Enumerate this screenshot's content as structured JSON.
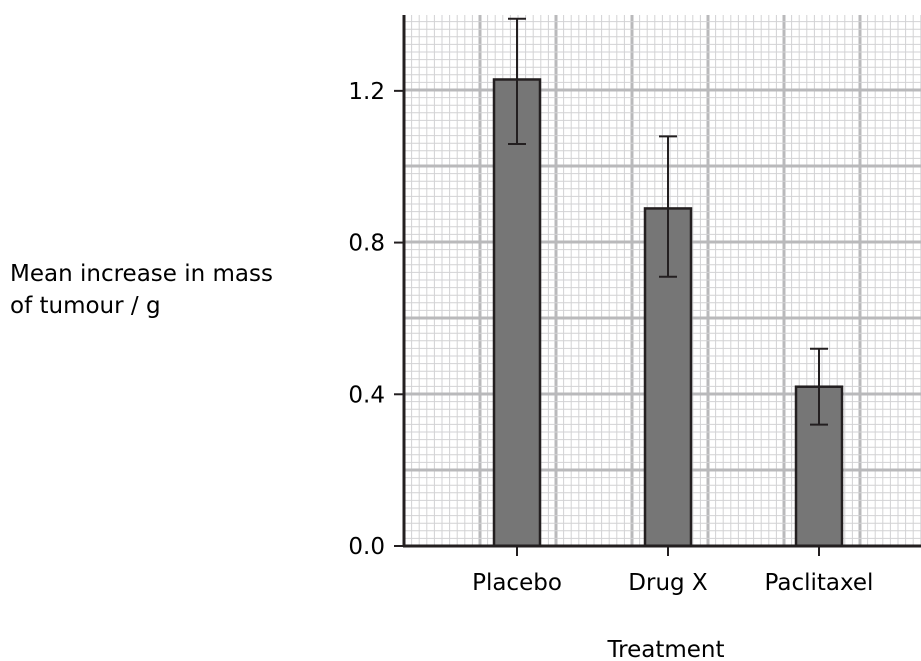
{
  "chart_data": {
    "type": "bar",
    "title": "",
    "xlabel": "Treatment",
    "ylabel": [
      "Mean increase in mass",
      "of tumour / g"
    ],
    "categories": [
      "Placebo",
      "Drug X",
      "Paclitaxel"
    ],
    "series": [
      {
        "values": [
          1.23,
          0.89,
          0.42
        ],
        "error_low": [
          1.06,
          0.71,
          0.32
        ],
        "error_high": [
          1.39,
          1.08,
          0.52
        ]
      }
    ],
    "ylim": [
      0,
      1.4
    ],
    "yticks": [
      0.0,
      0.4,
      0.8,
      1.2
    ],
    "ytick_labels": [
      "0.0",
      "0.4",
      "0.8",
      "1.2"
    ],
    "grid": true,
    "bar_color": "#767676",
    "grid_major_color": "#b9b9bb",
    "grid_minor_color": "#d2d2d4"
  }
}
